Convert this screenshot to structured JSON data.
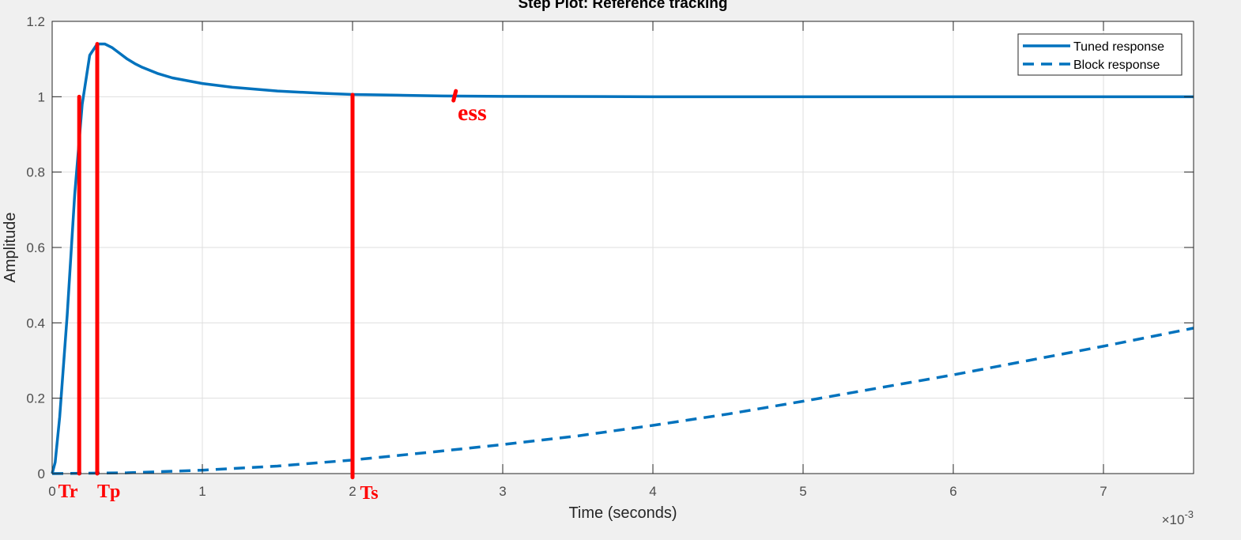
{
  "chart_data": {
    "type": "line",
    "title": "Step Plot: Reference tracking",
    "xlabel": "Time (seconds)",
    "ylabel": "Amplitude",
    "x_exponent_label": "×10",
    "x_exponent_power": "-3",
    "xlim": [
      0,
      7.6
    ],
    "ylim": [
      0,
      1.2
    ],
    "x_ticks": [
      0,
      1,
      2,
      3,
      4,
      5,
      6,
      7
    ],
    "x_tick_labels": [
      "0",
      "1",
      "2",
      "3",
      "4",
      "5",
      "6",
      "7"
    ],
    "y_ticks": [
      0,
      0.2,
      0.4,
      0.6,
      0.8,
      1,
      1.2
    ],
    "y_tick_labels": [
      "0",
      "0.2",
      "0.4",
      "0.6",
      "0.8",
      "1",
      "1.2"
    ],
    "grid": true,
    "legend_position": "top-right",
    "series": [
      {
        "name": "Tuned response",
        "style": "solid",
        "color": "#0072bd",
        "x": [
          0,
          0.02,
          0.05,
          0.1,
          0.15,
          0.2,
          0.25,
          0.3,
          0.35,
          0.4,
          0.45,
          0.5,
          0.55,
          0.6,
          0.7,
          0.8,
          1.0,
          1.2,
          1.5,
          1.8,
          2.0,
          2.3,
          2.6,
          3.0,
          4.0,
          5.0,
          6.0,
          7.0,
          7.6
        ],
        "y": [
          0,
          0.03,
          0.15,
          0.42,
          0.74,
          0.98,
          1.11,
          1.14,
          1.14,
          1.13,
          1.115,
          1.1,
          1.088,
          1.078,
          1.062,
          1.05,
          1.035,
          1.025,
          1.015,
          1.009,
          1.006,
          1.004,
          1.002,
          1.001,
          1.0,
          1.0,
          1.0,
          1.0,
          1.0
        ]
      },
      {
        "name": "Block response",
        "style": "dashed",
        "color": "#0072bd",
        "x": [
          0,
          0.5,
          1,
          1.5,
          2,
          2.5,
          3,
          3.5,
          4,
          4.5,
          5,
          5.5,
          6,
          6.5,
          7,
          7.6
        ],
        "y": [
          0,
          0.002,
          0.009,
          0.02,
          0.036,
          0.056,
          0.077,
          0.1,
          0.128,
          0.158,
          0.192,
          0.227,
          0.262,
          0.3,
          0.338,
          0.386
        ]
      }
    ],
    "annotations": [
      {
        "type": "vline",
        "x": 0.18,
        "y0": 0,
        "y1": 1.0,
        "label": "Tr",
        "label_x": 0.04,
        "label_y": -0.05
      },
      {
        "type": "vline",
        "x": 0.3,
        "y0": 0,
        "y1": 1.14,
        "label": "Tp",
        "label_x": 0.3,
        "label_y": -0.05
      },
      {
        "type": "vline",
        "x": 2.0,
        "y0": -0.01,
        "y1": 1.005,
        "label": "Ts",
        "label_x": 2.05,
        "label_y": -0.055
      },
      {
        "type": "tick",
        "x": 2.68,
        "y0": 0.99,
        "y1": 1.015,
        "label": "ess",
        "label_x": 2.7,
        "label_y": 0.95
      }
    ]
  }
}
